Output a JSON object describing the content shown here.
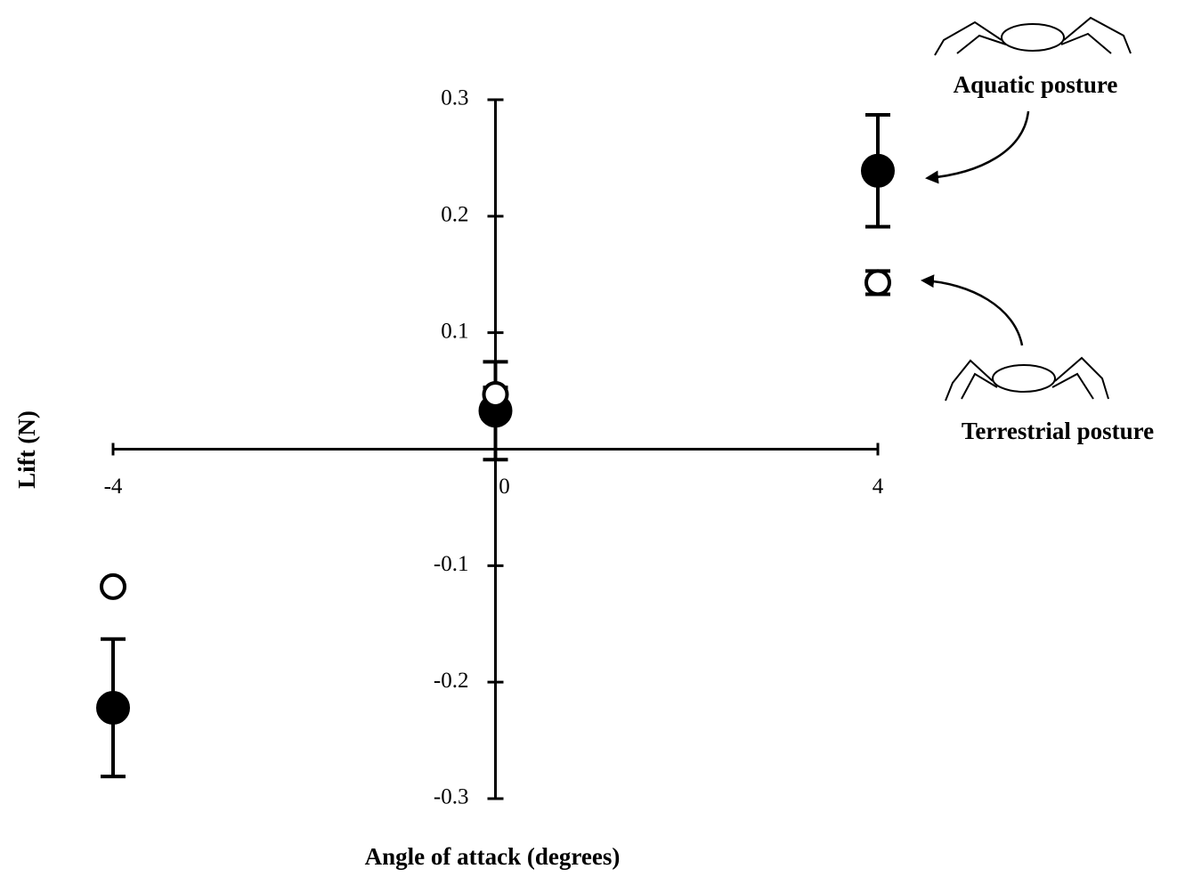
{
  "chart_data": {
    "type": "scatter",
    "x_label": "Angle of attack (degrees)",
    "y_label": "Lift (N)",
    "x": [
      -4,
      0,
      4
    ],
    "series": [
      {
        "name": "Aquatic posture",
        "color": "#000000",
        "filled": true,
        "values": [
          -0.222,
          0.033,
          0.239
        ],
        "errors": [
          0.059,
          0.042,
          0.048
        ]
      },
      {
        "name": "Terrestrial posture",
        "color": "#000000",
        "filled": false,
        "values": [
          -0.118,
          0.047,
          0.143
        ],
        "errors": [
          0,
          0.006,
          0.01
        ]
      }
    ],
    "xlim": [
      -4,
      4
    ],
    "xticks": [
      -4,
      0,
      4
    ],
    "ylim": [
      -0.3,
      0.3
    ],
    "yticks": [
      0.3,
      0.2,
      0.1,
      -0.1,
      -0.2,
      -0.3
    ]
  }
}
